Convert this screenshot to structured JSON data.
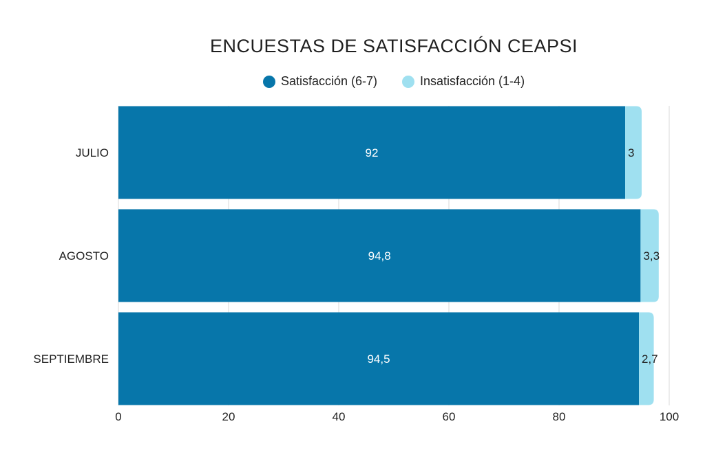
{
  "chart_data": {
    "type": "bar",
    "orientation": "horizontal",
    "stacked": true,
    "title": "ENCUESTAS DE SATISFACCIÓN CEAPSI",
    "categories": [
      "JULIO",
      "AGOSTO",
      "SEPTIEMBRE"
    ],
    "series": [
      {
        "name": "Satisfacción (6-7)",
        "color": "#0776aa",
        "values": [
          92,
          94.8,
          94.5
        ],
        "labels": [
          "92",
          "94,8",
          "94,5"
        ]
      },
      {
        "name": "Insatisfacción (1-4)",
        "color": "#9fe0f0",
        "values": [
          3,
          3.3,
          2.7
        ],
        "labels": [
          "3",
          "3,3",
          "2,7"
        ]
      }
    ],
    "x_ticks": [
      "0",
      "20",
      "40",
      "60",
      "80",
      "100"
    ],
    "xlim": [
      0,
      100
    ],
    "grid": true,
    "legend_position": "top-center"
  }
}
